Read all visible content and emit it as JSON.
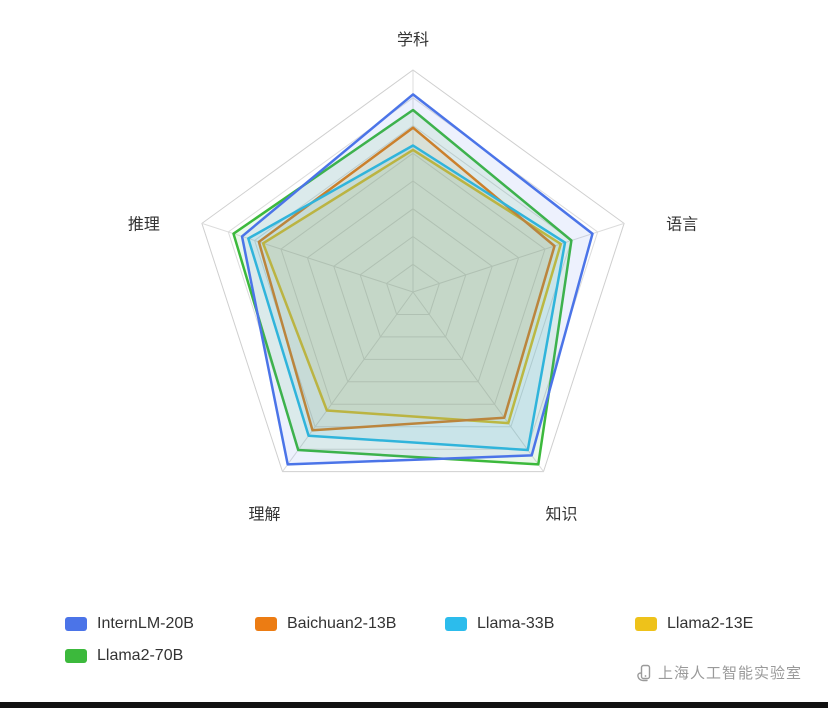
{
  "chart_data": {
    "type": "radar",
    "title": "",
    "axes": [
      "学科",
      "语言",
      "知识",
      "理解",
      "推理"
    ],
    "max": 100,
    "grid": true,
    "grid_levels": 8,
    "legend_position": "bottom",
    "series": [
      {
        "name": "InternLM-20B",
        "color": "#4b74e8",
        "values": [
          89,
          85,
          91,
          96,
          81
        ]
      },
      {
        "name": "Baichuan2-13B",
        "color": "#ec7c13",
        "values": [
          74,
          67,
          70,
          77,
          73
        ]
      },
      {
        "name": "Llama-33B",
        "color": "#2cbcec",
        "values": [
          66,
          72,
          88,
          80,
          78
        ]
      },
      {
        "name": "Llama2-13E",
        "color": "#eec21a",
        "values": [
          64,
          70,
          73,
          66,
          71
        ]
      },
      {
        "name": "Llama2-70B",
        "color": "#3cb93c",
        "values": [
          82,
          75,
          96,
          88,
          85
        ]
      }
    ]
  },
  "watermark": {
    "text": "上海人工智能实验室"
  },
  "colors": {
    "grid_line": "#dcdcdc",
    "axis_label": "#333333",
    "legend_text": "#333333",
    "watermark_text": "#9a9a9a",
    "bottom_bar": "#111111"
  }
}
